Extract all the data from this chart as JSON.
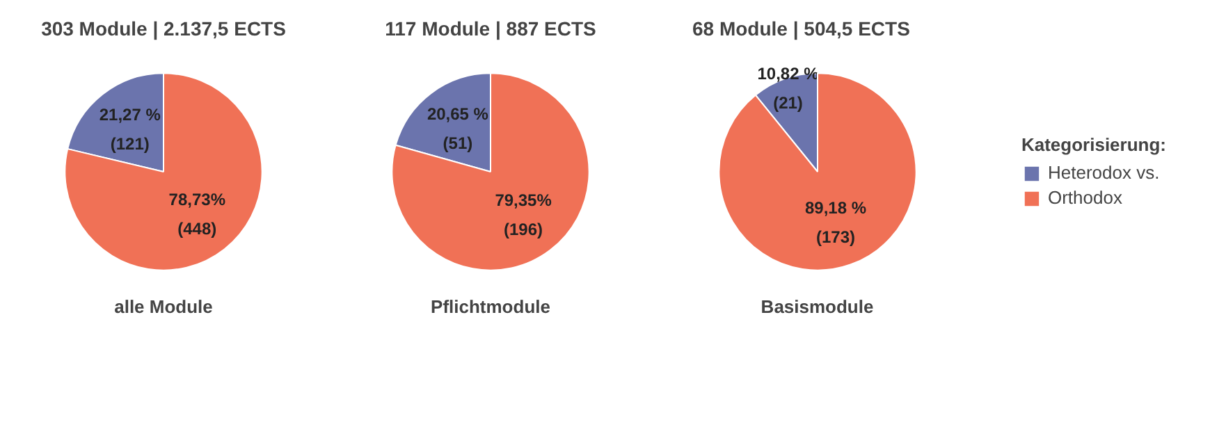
{
  "chart_data": [
    {
      "type": "pie",
      "title": "303 Module | 2.137,5 ECTS",
      "xlabel": "alle Module",
      "categories": [
        null,
        null
      ],
      "values": [
        21.27,
        78.73
      ],
      "colors": [
        "#6b74ad",
        "#f07156"
      ],
      "value_labels": [
        "21,27 %\n(121)",
        "78,73%\n(448)"
      ],
      "legend": false
    },
    {
      "type": "pie",
      "title": "117 Module | 887 ECTS",
      "xlabel": "Pflichtmodule",
      "categories": [
        null,
        null
      ],
      "values": [
        20.65,
        79.35
      ],
      "colors": [
        "#6b74ad",
        "#f07156"
      ],
      "value_labels": [
        "20,65 %\n(51)",
        "79,35%\n(196)"
      ],
      "legend": false
    },
    {
      "type": "pie",
      "title": "68 Module | 504,5 ECTS",
      "xlabel": "Basismodule",
      "categories": [
        "Heterodox vs.",
        "Orthodox"
      ],
      "values": [
        10.82,
        89.18
      ],
      "colors": [
        "#6b74ad",
        "#f07156"
      ],
      "value_labels": [
        "10,82 %\n(21)",
        "89,18 %\n(173)"
      ],
      "legend": "right",
      "legend_title": "Kategorisierung:"
    }
  ]
}
